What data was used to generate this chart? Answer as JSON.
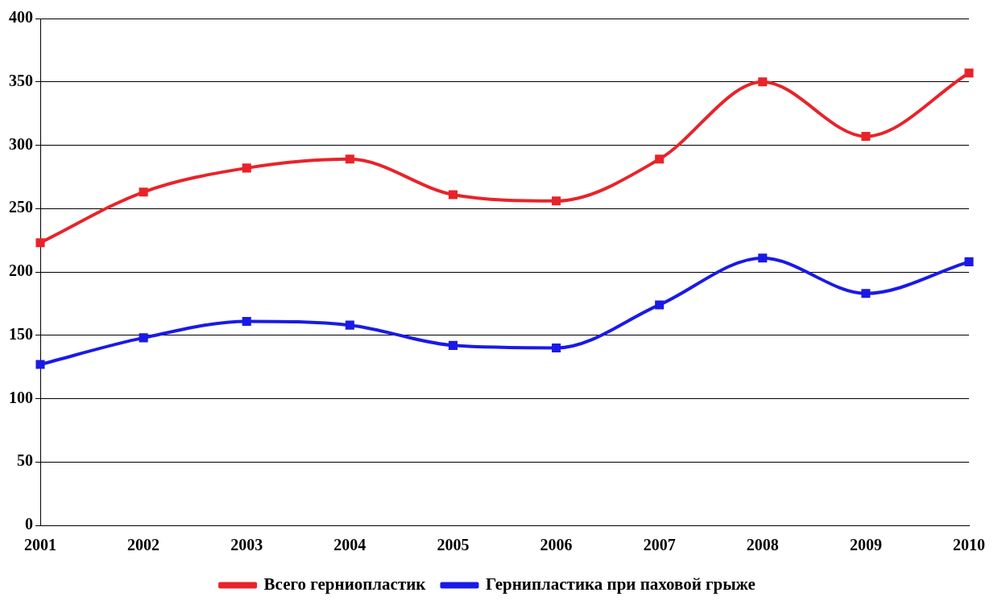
{
  "chart_data": {
    "type": "line",
    "categories": [
      "2001",
      "2002",
      "2003",
      "2004",
      "2005",
      "2006",
      "2007",
      "2008",
      "2009",
      "2010"
    ],
    "series": [
      {
        "name": "Всего герниопластик",
        "color": "#e8232a",
        "values": [
          223,
          263,
          282,
          289,
          261,
          256,
          289,
          350,
          307,
          357
        ]
      },
      {
        "name": "Гернипластика при паховой грыже",
        "color": "#1a1ae6",
        "values": [
          127,
          148,
          161,
          158,
          142,
          140,
          174,
          211,
          183,
          208
        ]
      }
    ],
    "ylim": [
      0,
      400
    ],
    "yticks": [
      0,
      50,
      100,
      150,
      200,
      250,
      300,
      350,
      400
    ],
    "grid": "y",
    "legend": "bottom",
    "marker": "square",
    "line_style": "solid"
  }
}
